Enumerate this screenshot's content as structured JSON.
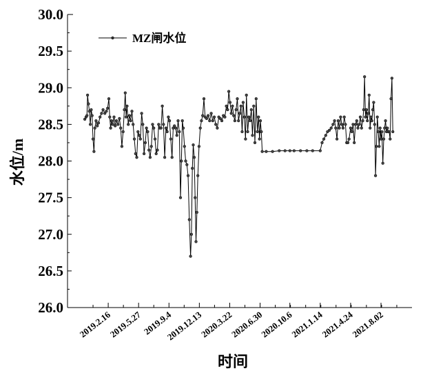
{
  "chart_data": {
    "type": "line",
    "xlabel": "时间",
    "ylabel": "水位/m",
    "ylim": [
      26.0,
      30.0
    ],
    "yticks": [
      "26.0",
      "26.5",
      "27.0",
      "27.5",
      "28.0",
      "28.5",
      "29.0",
      "29.5",
      "30.0"
    ],
    "xlim": [
      "2018-10-05",
      "2021-11-12"
    ],
    "xtick_labels": [
      "2019.2.16",
      "2019.5.27",
      "2019.9.4",
      "2019.12.13",
      "2020.3.22",
      "2020.6.30",
      "2020.10.6",
      "2021.1.14",
      "2021.4.24",
      "2021.8.02"
    ],
    "xtick_dates": [
      "2019-02-16",
      "2019-05-27",
      "2019-09-04",
      "2019-12-13",
      "2020-03-22",
      "2020-06-30",
      "2020-10-06",
      "2021-01-14",
      "2021-04-24",
      "2021-08-02"
    ],
    "legend_position": "top-left",
    "grid": false,
    "series": [
      {
        "name": "MZ闸水位",
        "color": "#000000",
        "marker": "circle",
        "points": [
          [
            "2018-12-01",
            28.57
          ],
          [
            "2018-12-05",
            28.6
          ],
          [
            "2018-12-08",
            28.62
          ],
          [
            "2018-12-10",
            28.9
          ],
          [
            "2018-12-13",
            28.78
          ],
          [
            "2018-12-16",
            28.68
          ],
          [
            "2018-12-19",
            28.5
          ],
          [
            "2018-12-22",
            28.7
          ],
          [
            "2018-12-25",
            28.62
          ],
          [
            "2018-12-28",
            28.3
          ],
          [
            "2018-12-31",
            28.13
          ],
          [
            "2019-01-03",
            28.45
          ],
          [
            "2019-01-07",
            28.55
          ],
          [
            "2019-01-11",
            28.48
          ],
          [
            "2019-01-15",
            28.52
          ],
          [
            "2019-01-20",
            28.6
          ],
          [
            "2019-01-25",
            28.65
          ],
          [
            "2019-01-30",
            28.7
          ],
          [
            "2019-02-05",
            28.65
          ],
          [
            "2019-02-10",
            28.68
          ],
          [
            "2019-02-14",
            28.72
          ],
          [
            "2019-02-18",
            28.85
          ],
          [
            "2019-02-21",
            28.6
          ],
          [
            "2019-02-24",
            28.45
          ],
          [
            "2019-02-27",
            28.55
          ],
          [
            "2019-03-03",
            28.5
          ],
          [
            "2019-03-07",
            28.6
          ],
          [
            "2019-03-11",
            28.48
          ],
          [
            "2019-03-15",
            28.55
          ],
          [
            "2019-03-20",
            28.5
          ],
          [
            "2019-03-25",
            28.58
          ],
          [
            "2019-03-29",
            28.45
          ],
          [
            "2019-04-02",
            28.2
          ],
          [
            "2019-04-06",
            28.4
          ],
          [
            "2019-04-10",
            28.7
          ],
          [
            "2019-04-13",
            28.93
          ],
          [
            "2019-04-16",
            28.6
          ],
          [
            "2019-04-19",
            28.75
          ],
          [
            "2019-04-23",
            28.5
          ],
          [
            "2019-04-27",
            28.62
          ],
          [
            "2019-05-01",
            28.55
          ],
          [
            "2019-05-05",
            28.68
          ],
          [
            "2019-05-09",
            28.5
          ],
          [
            "2019-05-13",
            28.3
          ],
          [
            "2019-05-17",
            28.1
          ],
          [
            "2019-05-21",
            28.05
          ],
          [
            "2019-05-25",
            28.4
          ],
          [
            "2019-05-29",
            28.35
          ],
          [
            "2019-06-02",
            28.3
          ],
          [
            "2019-06-06",
            28.65
          ],
          [
            "2019-06-10",
            28.5
          ],
          [
            "2019-06-14",
            28.1
          ],
          [
            "2019-06-18",
            28.25
          ],
          [
            "2019-06-22",
            28.45
          ],
          [
            "2019-06-26",
            28.4
          ],
          [
            "2019-06-30",
            28.15
          ],
          [
            "2019-07-04",
            28.05
          ],
          [
            "2019-07-08",
            28.2
          ],
          [
            "2019-07-12",
            28.5
          ],
          [
            "2019-07-16",
            28.45
          ],
          [
            "2019-07-20",
            28.3
          ],
          [
            "2019-07-24",
            28.1
          ],
          [
            "2019-07-28",
            28.15
          ],
          [
            "2019-08-01",
            28.5
          ],
          [
            "2019-08-05",
            28.45
          ],
          [
            "2019-08-09",
            28.45
          ],
          [
            "2019-08-13",
            28.75
          ],
          [
            "2019-08-17",
            28.5
          ],
          [
            "2019-08-21",
            28.05
          ],
          [
            "2019-08-25",
            28.45
          ],
          [
            "2019-08-29",
            28.4
          ],
          [
            "2019-09-02",
            28.6
          ],
          [
            "2019-09-06",
            28.55
          ],
          [
            "2019-09-10",
            28.3
          ],
          [
            "2019-09-14",
            28.05
          ],
          [
            "2019-09-18",
            28.45
          ],
          [
            "2019-09-22",
            28.48
          ],
          [
            "2019-09-26",
            28.45
          ],
          [
            "2019-09-30",
            28.35
          ],
          [
            "2019-10-04",
            28.55
          ],
          [
            "2019-10-08",
            28.4
          ],
          [
            "2019-10-12",
            27.5
          ],
          [
            "2019-10-15",
            28.0
          ],
          [
            "2019-10-18",
            28.55
          ],
          [
            "2019-10-21",
            28.45
          ],
          [
            "2019-10-25",
            28.2
          ],
          [
            "2019-10-29",
            28.0
          ],
          [
            "2019-11-02",
            27.95
          ],
          [
            "2019-11-06",
            27.8
          ],
          [
            "2019-11-10",
            27.2
          ],
          [
            "2019-11-14",
            26.7
          ],
          [
            "2019-11-17",
            27.0
          ],
          [
            "2019-11-20",
            27.9
          ],
          [
            "2019-11-23",
            28.22
          ],
          [
            "2019-11-26",
            28.05
          ],
          [
            "2019-11-29",
            27.5
          ],
          [
            "2019-12-02",
            26.9
          ],
          [
            "2019-12-05",
            27.3
          ],
          [
            "2019-12-08",
            27.8
          ],
          [
            "2019-12-12",
            28.2
          ],
          [
            "2019-12-16",
            28.45
          ],
          [
            "2019-12-20",
            28.55
          ],
          [
            "2019-12-24",
            28.62
          ],
          [
            "2019-12-28",
            28.85
          ],
          [
            "2020-01-01",
            28.6
          ],
          [
            "2020-01-06",
            28.58
          ],
          [
            "2020-01-11",
            28.62
          ],
          [
            "2020-01-16",
            28.55
          ],
          [
            "2020-01-21",
            28.65
          ],
          [
            "2020-01-26",
            28.55
          ],
          [
            "2020-01-31",
            28.6
          ],
          [
            "2020-02-05",
            28.5
          ],
          [
            "2020-02-10",
            28.45
          ],
          [
            "2020-02-15",
            28.6
          ],
          [
            "2020-02-20",
            28.58
          ],
          [
            "2020-02-25",
            28.55
          ],
          [
            "2020-03-01",
            28.62
          ],
          [
            "2020-03-06",
            28.6
          ],
          [
            "2020-03-11",
            28.75
          ],
          [
            "2020-03-15",
            28.7
          ],
          [
            "2020-03-19",
            28.95
          ],
          [
            "2020-03-23",
            28.8
          ],
          [
            "2020-03-27",
            28.65
          ],
          [
            "2020-03-31",
            28.75
          ],
          [
            "2020-04-04",
            28.62
          ],
          [
            "2020-04-08",
            28.55
          ],
          [
            "2020-04-12",
            28.7
          ],
          [
            "2020-04-16",
            28.85
          ],
          [
            "2020-04-20",
            28.55
          ],
          [
            "2020-04-24",
            28.65
          ],
          [
            "2020-04-28",
            28.75
          ],
          [
            "2020-05-02",
            28.4
          ],
          [
            "2020-05-05",
            28.8
          ],
          [
            "2020-05-09",
            28.6
          ],
          [
            "2020-05-13",
            28.3
          ],
          [
            "2020-05-16",
            28.9
          ],
          [
            "2020-05-20",
            28.4
          ],
          [
            "2020-05-24",
            28.6
          ],
          [
            "2020-05-28",
            28.55
          ],
          [
            "2020-06-01",
            28.7
          ],
          [
            "2020-06-05",
            28.35
          ],
          [
            "2020-06-09",
            28.75
          ],
          [
            "2020-06-13",
            28.25
          ],
          [
            "2020-06-17",
            28.85
          ],
          [
            "2020-06-21",
            28.4
          ],
          [
            "2020-06-25",
            28.6
          ],
          [
            "2020-06-28",
            28.3
          ],
          [
            "2020-07-01",
            28.55
          ],
          [
            "2020-07-04",
            28.4
          ],
          [
            "2020-07-07",
            28.13
          ],
          [
            "2020-07-20",
            28.13
          ],
          [
            "2020-08-10",
            28.13
          ],
          [
            "2020-09-01",
            28.14
          ],
          [
            "2020-09-20",
            28.14
          ],
          [
            "2020-10-06",
            28.14
          ],
          [
            "2020-10-20",
            28.14
          ],
          [
            "2020-11-10",
            28.14
          ],
          [
            "2020-12-01",
            28.14
          ],
          [
            "2020-12-20",
            28.14
          ],
          [
            "2021-01-14",
            28.14
          ],
          [
            "2021-01-20",
            28.25
          ],
          [
            "2021-01-26",
            28.3
          ],
          [
            "2021-02-01",
            28.35
          ],
          [
            "2021-02-07",
            28.4
          ],
          [
            "2021-02-13",
            28.42
          ],
          [
            "2021-02-19",
            28.45
          ],
          [
            "2021-02-25",
            28.5
          ],
          [
            "2021-03-02",
            28.55
          ],
          [
            "2021-03-06",
            28.45
          ],
          [
            "2021-03-10",
            28.3
          ],
          [
            "2021-03-14",
            28.55
          ],
          [
            "2021-03-18",
            28.45
          ],
          [
            "2021-03-22",
            28.6
          ],
          [
            "2021-03-26",
            28.5
          ],
          [
            "2021-03-30",
            28.45
          ],
          [
            "2021-04-03",
            28.6
          ],
          [
            "2021-04-07",
            28.5
          ],
          [
            "2021-04-11",
            28.25
          ],
          [
            "2021-04-15",
            28.25
          ],
          [
            "2021-04-19",
            28.3
          ],
          [
            "2021-04-24",
            28.45
          ],
          [
            "2021-04-28",
            28.4
          ],
          [
            "2021-05-02",
            28.5
          ],
          [
            "2021-05-06",
            28.25
          ],
          [
            "2021-05-10",
            28.5
          ],
          [
            "2021-05-14",
            28.55
          ],
          [
            "2021-05-18",
            28.45
          ],
          [
            "2021-05-22",
            28.5
          ],
          [
            "2021-05-26",
            28.6
          ],
          [
            "2021-05-30",
            28.45
          ],
          [
            "2021-06-03",
            28.55
          ],
          [
            "2021-06-06",
            28.7
          ],
          [
            "2021-06-09",
            29.15
          ],
          [
            "2021-06-12",
            28.6
          ],
          [
            "2021-06-15",
            28.7
          ],
          [
            "2021-06-18",
            28.55
          ],
          [
            "2021-06-21",
            28.65
          ],
          [
            "2021-06-24",
            28.9
          ],
          [
            "2021-06-27",
            28.45
          ],
          [
            "2021-06-30",
            28.6
          ],
          [
            "2021-07-03",
            28.55
          ],
          [
            "2021-07-06",
            28.7
          ],
          [
            "2021-07-09",
            28.8
          ],
          [
            "2021-07-12",
            28.5
          ],
          [
            "2021-07-15",
            27.8
          ],
          [
            "2021-07-18",
            28.2
          ],
          [
            "2021-07-21",
            28.6
          ],
          [
            "2021-07-24",
            28.4
          ],
          [
            "2021-07-27",
            28.2
          ],
          [
            "2021-07-30",
            28.45
          ],
          [
            "2021-08-02",
            28.3
          ],
          [
            "2021-08-05",
            28.4
          ],
          [
            "2021-08-08",
            27.97
          ],
          [
            "2021-08-11",
            28.3
          ],
          [
            "2021-08-14",
            28.45
          ],
          [
            "2021-08-17",
            28.55
          ],
          [
            "2021-08-20",
            28.4
          ],
          [
            "2021-08-23",
            28.45
          ],
          [
            "2021-08-26",
            28.4
          ],
          [
            "2021-08-29",
            28.4
          ],
          [
            "2021-09-01",
            28.3
          ],
          [
            "2021-09-04",
            28.85
          ],
          [
            "2021-09-07",
            29.13
          ],
          [
            "2021-09-10",
            28.4
          ]
        ]
      }
    ]
  }
}
